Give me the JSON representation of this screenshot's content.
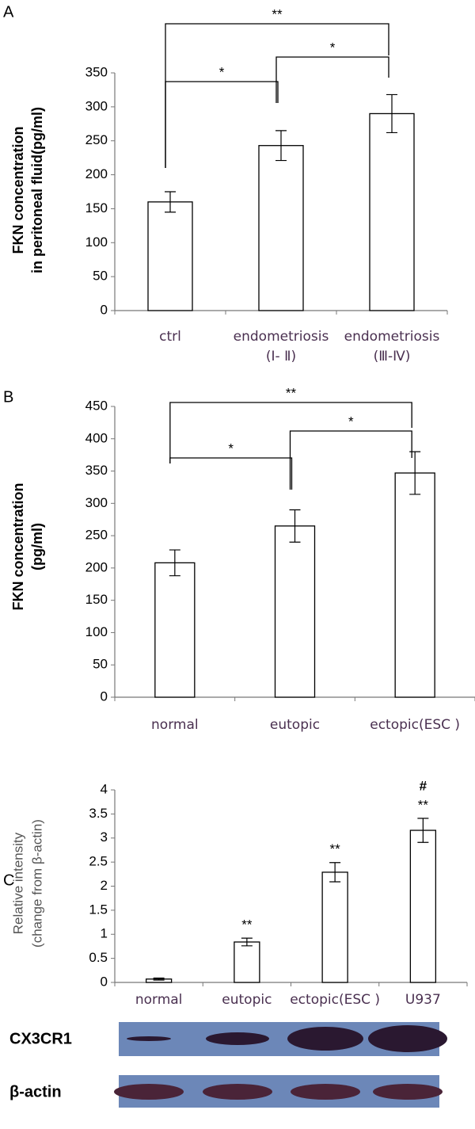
{
  "chart_data": [
    {
      "type": "bar",
      "panel_label": "A",
      "ylabel": [
        "FKN concentration",
        "in peritoneal  fluid(pg/ml)"
      ],
      "categories": [
        [
          "ctrl"
        ],
        [
          "endometriosis",
          "(Ⅰ- Ⅱ)"
        ],
        [
          "endometriosis",
          "(Ⅲ-Ⅳ)"
        ]
      ],
      "values": [
        160,
        243,
        290
      ],
      "errors": [
        15,
        22,
        28
      ],
      "color": "#ffffff",
      "ylim": [
        0,
        350
      ],
      "yticks": [
        0,
        50,
        100,
        150,
        200,
        250,
        300,
        350
      ],
      "significance_labels": [
        "**",
        "*",
        "*"
      ]
    },
    {
      "type": "bar",
      "panel_label": "B",
      "ylabel": [
        "FKN concentration",
        "(pg/ml)"
      ],
      "categories": [
        [
          "normal"
        ],
        [
          "eutopic"
        ],
        [
          "ectopic(ESC )"
        ]
      ],
      "values": [
        208,
        265,
        347
      ],
      "errors": [
        20,
        25,
        33
      ],
      "color": "#ffffff",
      "ylim": [
        0,
        450
      ],
      "yticks": [
        0,
        50,
        100,
        150,
        200,
        250,
        300,
        350,
        400,
        450
      ],
      "significance_labels": [
        "**",
        "*",
        "*"
      ]
    },
    {
      "type": "bar",
      "panel_label": "C",
      "ylabel": [
        "Relative intensity",
        "(change from β-actin)"
      ],
      "categories": [
        [
          "normal"
        ],
        [
          "eutopic"
        ],
        [
          "ectopic(ESC )"
        ],
        [
          "U937"
        ]
      ],
      "values": [
        0.07,
        0.84,
        2.29,
        3.16
      ],
      "errors": [
        0.02,
        0.08,
        0.2,
        0.25
      ],
      "color": "#ffffff",
      "ylim": [
        0,
        4
      ],
      "yticks": [
        0,
        0.5,
        1,
        1.5,
        2,
        2.5,
        3,
        3.5,
        4
      ],
      "bar_annotations": [
        null,
        [
          "**"
        ],
        [
          "**"
        ],
        [
          "**",
          "#"
        ]
      ],
      "blot_rows": [
        "CX3CR1",
        "β-actin"
      ]
    }
  ]
}
